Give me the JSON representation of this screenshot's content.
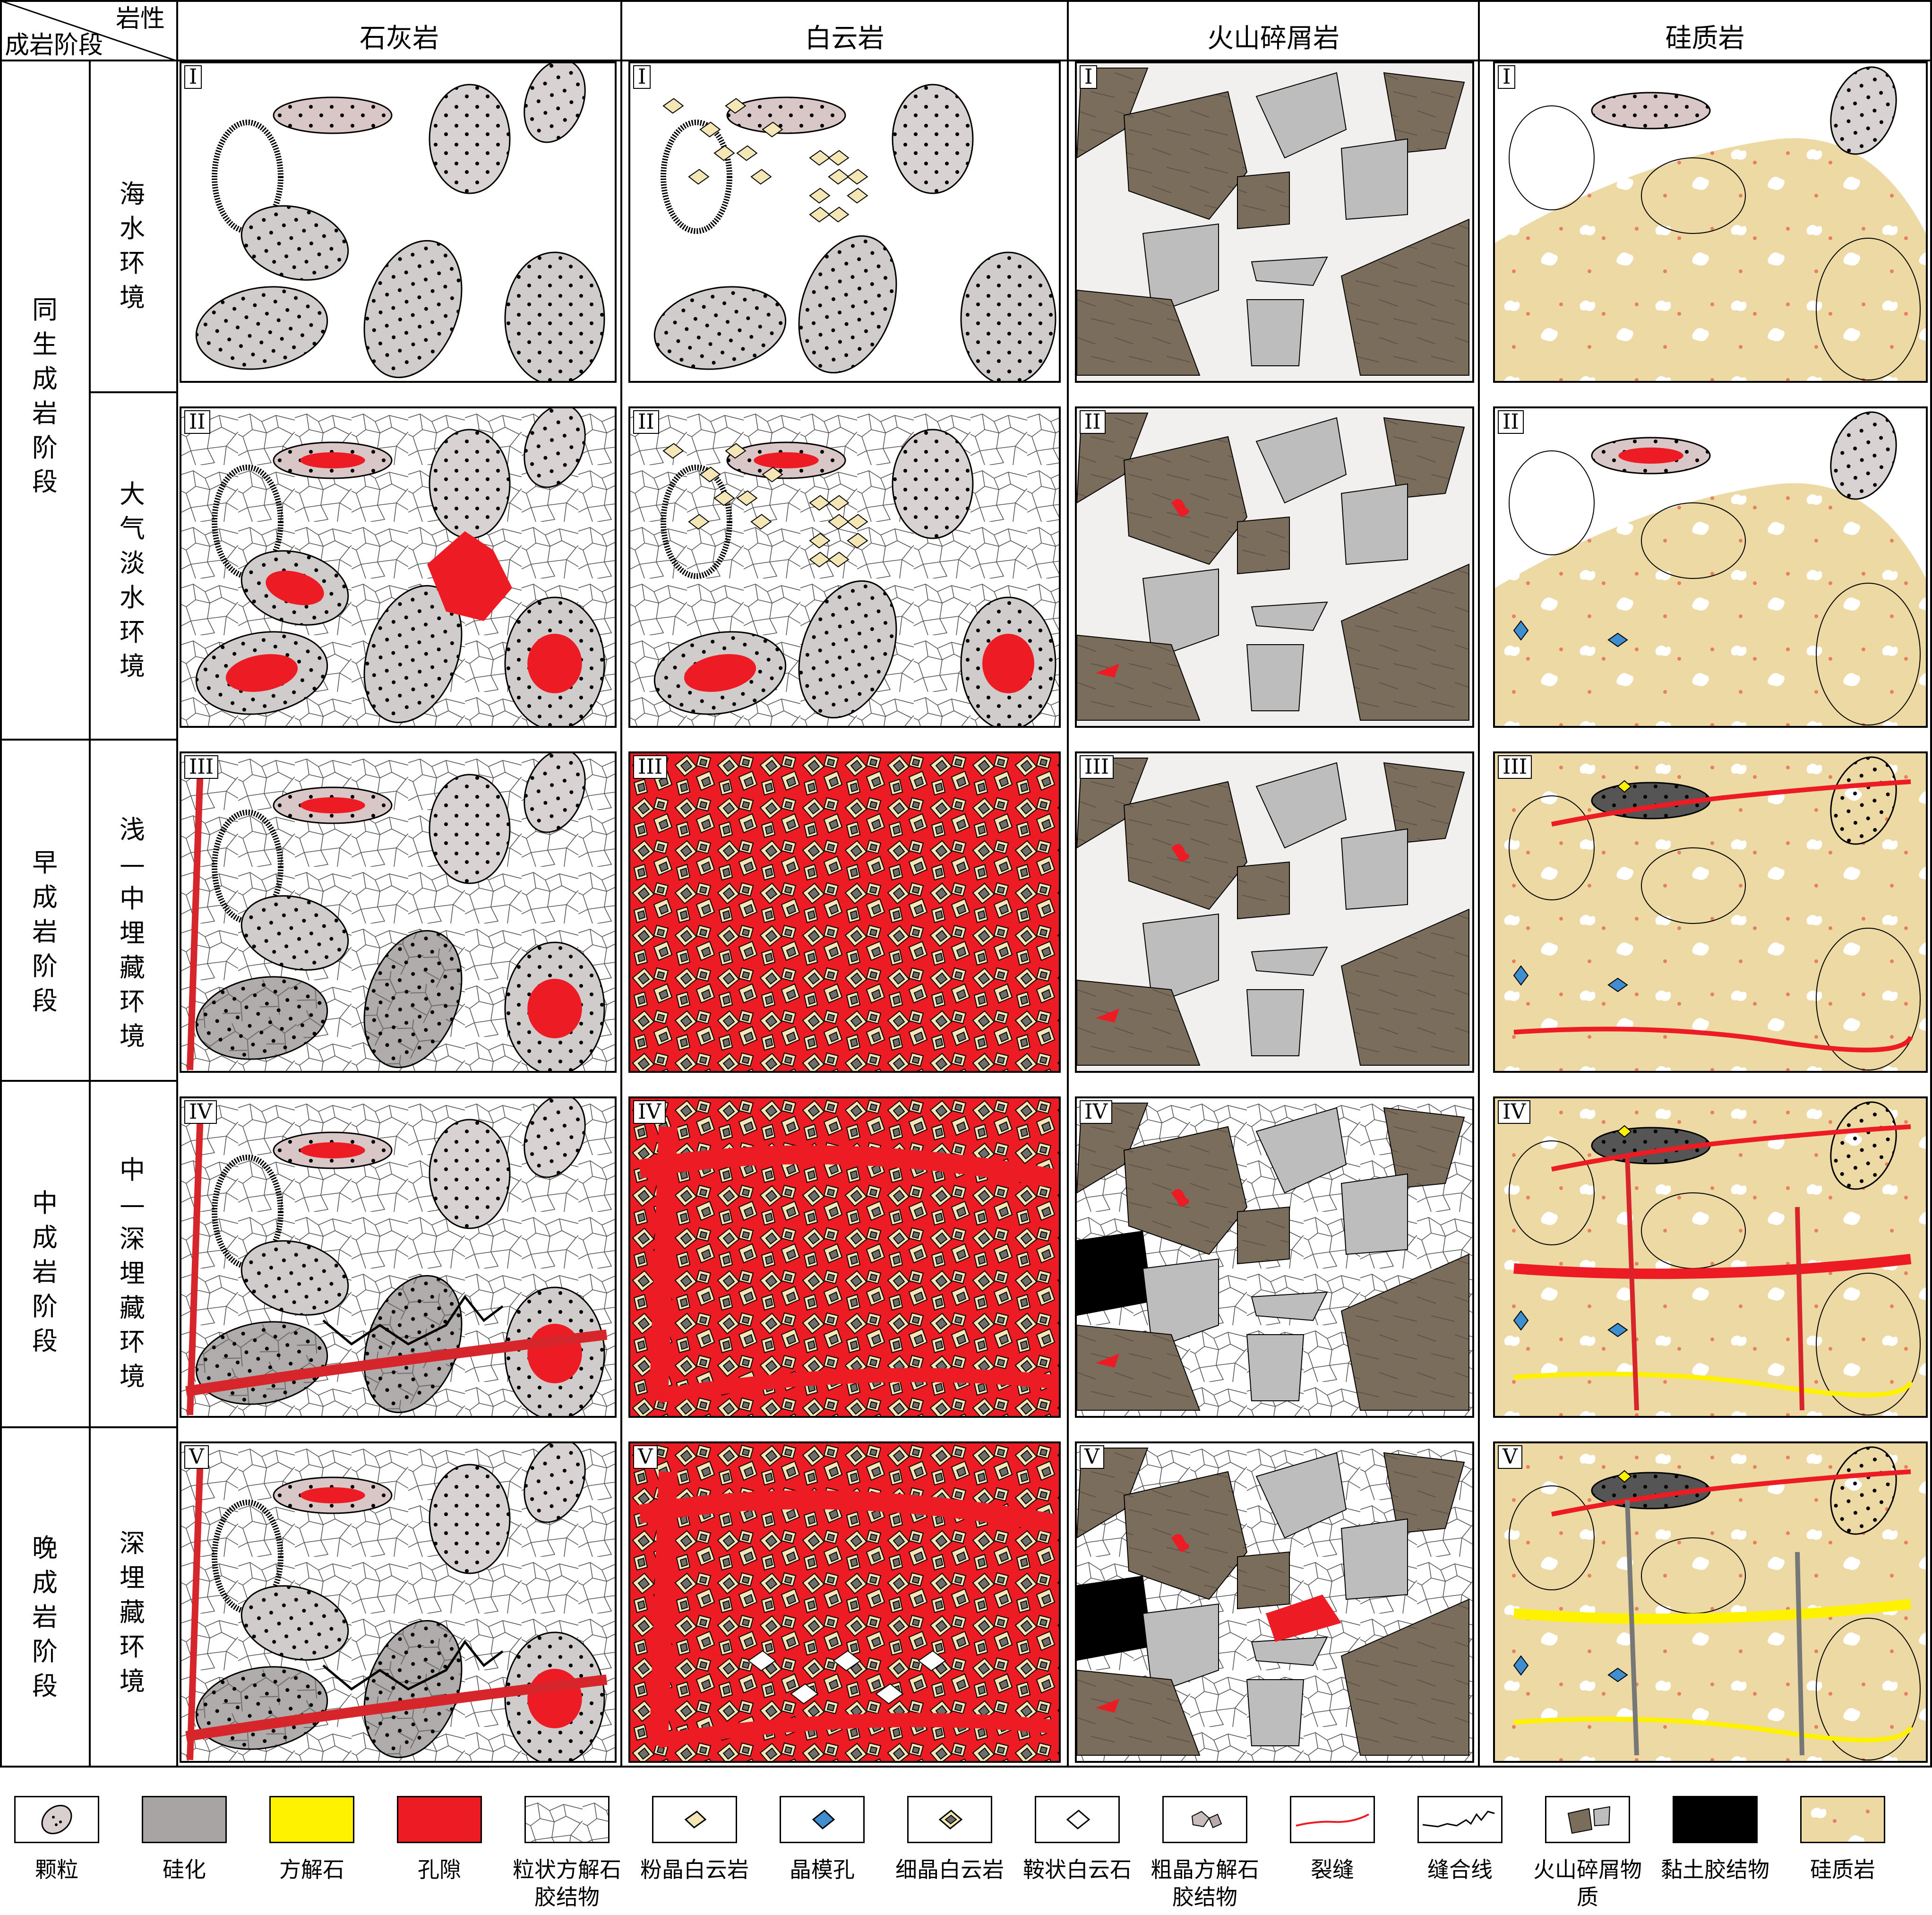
{
  "corner": {
    "top_right": "岩性",
    "bottom_left": "成岩阶段"
  },
  "columns": [
    "石灰岩",
    "白云岩",
    "火山碎屑岩",
    "硅质岩"
  ],
  "stages": [
    {
      "label": "同生成岩阶段",
      "environments": [
        "海水环境",
        "大气淡水环境"
      ]
    },
    {
      "label": "早成岩阶段",
      "environments": [
        "浅—中埋藏环境"
      ]
    },
    {
      "label": "中成岩阶段",
      "environments": [
        "中—深埋藏环境"
      ]
    },
    {
      "label": "晚成岩阶段",
      "environments": [
        "深埋藏环境"
      ]
    }
  ],
  "panel_numerals": [
    "I",
    "II",
    "III",
    "IV",
    "V"
  ],
  "legend": [
    {
      "label": "颗粒",
      "icon": "grain-icon"
    },
    {
      "label": "硅化",
      "icon": "silicification-swatch",
      "color": "#a8a4a4"
    },
    {
      "label": "方解石",
      "icon": "calcite-swatch",
      "color": "#fff200"
    },
    {
      "label": "孔隙",
      "icon": "pore-swatch",
      "color": "#ed1c24"
    },
    {
      "label": "粒状方解石胶结物",
      "icon": "granular-calcite-cement-icon"
    },
    {
      "label": "粉晶白云岩",
      "icon": "silt-dolomite-icon"
    },
    {
      "label": "晶模孔",
      "icon": "crystal-mold-pore-icon",
      "color": "#3f8fd0"
    },
    {
      "label": "细晶白云岩",
      "icon": "fine-dolomite-icon"
    },
    {
      "label": "鞍状白云石",
      "icon": "saddle-dolomite-icon"
    },
    {
      "label": "粗晶方解石胶结物",
      "icon": "coarse-calcite-cement-icon"
    },
    {
      "label": "裂缝",
      "icon": "fracture-icon"
    },
    {
      "label": "缝合线",
      "icon": "stylolite-icon"
    },
    {
      "label": "火山碎屑物质",
      "icon": "volcanic-clast-icon",
      "color": "#7b6d5c"
    },
    {
      "label": "黏土胶结物",
      "icon": "clay-cement-swatch",
      "color": "#000000"
    },
    {
      "label": "硅质岩",
      "icon": "chert-swatch",
      "color": "#ecd9a4"
    }
  ]
}
